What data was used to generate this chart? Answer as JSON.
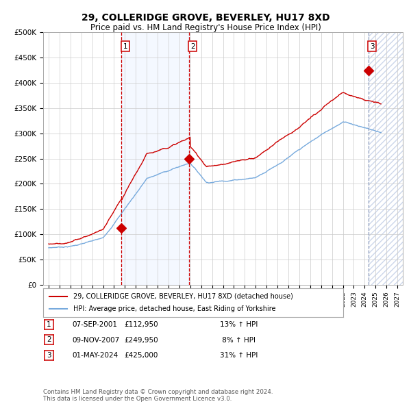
{
  "title": "29, COLLERIDGE GROVE, BEVERLEY, HU17 8XD",
  "subtitle": "Price paid vs. HM Land Registry's House Price Index (HPI)",
  "title_fontsize": 10,
  "subtitle_fontsize": 8.5,
  "xlim": [
    1994.5,
    2027.5
  ],
  "ylim": [
    0,
    500000
  ],
  "yticks": [
    0,
    50000,
    100000,
    150000,
    200000,
    250000,
    300000,
    350000,
    400000,
    450000,
    500000
  ],
  "ytick_labels": [
    "£0",
    "£50K",
    "£100K",
    "£150K",
    "£200K",
    "£250K",
    "£300K",
    "£350K",
    "£400K",
    "£450K",
    "£500K"
  ],
  "sale_color": "#cc0000",
  "hpi_color": "#77aadd",
  "sale_label": "29, COLLERIDGE GROVE, BEVERLEY, HU17 8XD (detached house)",
  "hpi_label": "HPI: Average price, detached house, East Riding of Yorkshire",
  "sale_dates": [
    2001.69,
    2007.86,
    2024.33
  ],
  "sale_prices": [
    112950,
    249950,
    425000
  ],
  "vline1_x": 2001.69,
  "vline2_x": 2007.86,
  "vline3_x": 2024.33,
  "shade_start": 2001.69,
  "shade_end": 2007.86,
  "hatch_start": 2024.33,
  "hatch_end": 2027.5,
  "table_rows": [
    [
      "1",
      "07-SEP-2001",
      "£112,950",
      "13% ↑ HPI"
    ],
    [
      "2",
      "09-NOV-2007",
      "£249,950",
      " 8% ↑ HPI"
    ],
    [
      "3",
      "01-MAY-2024",
      "£425,000",
      "31% ↑ HPI"
    ]
  ],
  "footnote": "Contains HM Land Registry data © Crown copyright and database right 2024.\nThis data is licensed under the Open Government Licence v3.0.",
  "background_color": "#ffffff",
  "grid_color": "#cccccc"
}
